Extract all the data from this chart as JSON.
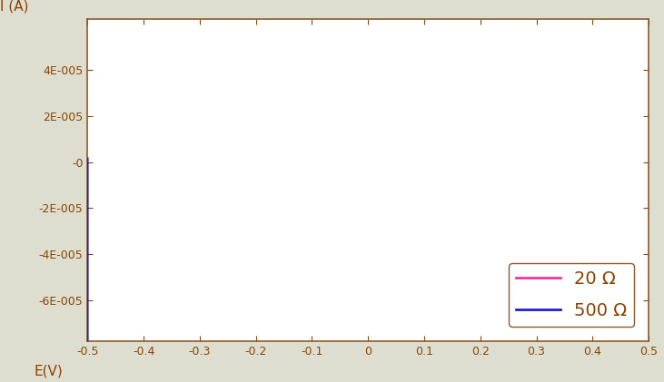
{
  "background_color": "#deded0",
  "plot_bg_color": "#ffffff",
  "axis_color": "#8B5A2B",
  "tick_color": "#8B4500",
  "label_color": "#8B4000",
  "color_20": "#FF3399",
  "color_500": "#2020CC",
  "xlabel": "E(V)",
  "ylabel": "I (A)",
  "xlim": [
    -0.5,
    0.5
  ],
  "ylim": [
    -7.8e-05,
    6.2e-05
  ],
  "legend_labels": [
    "20 Ω",
    "500 Ω"
  ],
  "yticks": [
    -6e-05,
    -4e-05,
    -2e-05,
    0,
    2e-05,
    4e-05
  ],
  "ytick_labels": [
    "-6E-005",
    "-4E-005",
    "-2E-005",
    "-0",
    "2E-005",
    "4E-005"
  ],
  "xticks": [
    -0.5,
    -0.4,
    -0.3,
    -0.2,
    -0.1,
    0,
    0.1,
    0.2,
    0.3,
    0.4,
    0.5
  ]
}
